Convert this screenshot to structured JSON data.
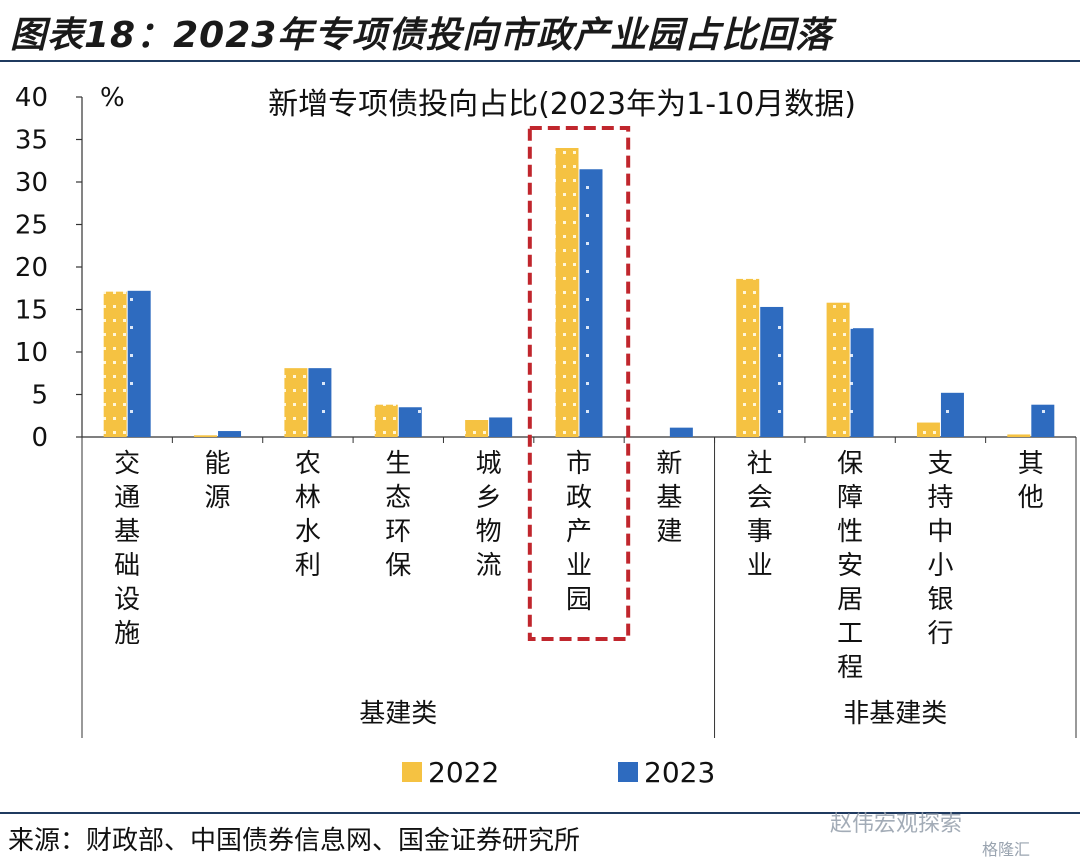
{
  "figure_title": "图表18：2023年专项债投向市政产业园占比回落",
  "source": "来源：财政部、中国债券信息网、国金证券研究所",
  "watermark": "赵伟宏观探索",
  "watermark2": "格隆汇",
  "chart_data": {
    "type": "bar",
    "title": "新增专项债投向占比(2023年为1-10月数据)",
    "ylabel": "%",
    "ylim": [
      0,
      40
    ],
    "yticks": [
      0,
      5,
      10,
      15,
      20,
      25,
      30,
      35,
      40
    ],
    "categories": [
      "交通基础设施",
      "能源",
      "农林水利",
      "生态环保",
      "城乡物流",
      "市政产业园",
      "新基建",
      "社会事业",
      "保障性安居工程",
      "支持中小银行",
      "其他"
    ],
    "groups": [
      {
        "label": "基建类",
        "from": 0,
        "to": 6
      },
      {
        "label": "非基建类",
        "from": 7,
        "to": 10
      }
    ],
    "highlight_category": "市政产业园",
    "series": [
      {
        "name": "2022",
        "color": "#f5c242",
        "values": [
          17.1,
          0.2,
          8.1,
          3.8,
          2.0,
          34.0,
          0.0,
          18.6,
          15.8,
          1.7,
          0.3
        ]
      },
      {
        "name": "2023",
        "color": "#2e6bbf",
        "values": [
          17.2,
          0.7,
          8.1,
          3.5,
          2.3,
          31.5,
          1.1,
          15.3,
          12.8,
          5.2,
          3.8
        ]
      }
    ],
    "legend_position": "bottom",
    "grid": false
  }
}
